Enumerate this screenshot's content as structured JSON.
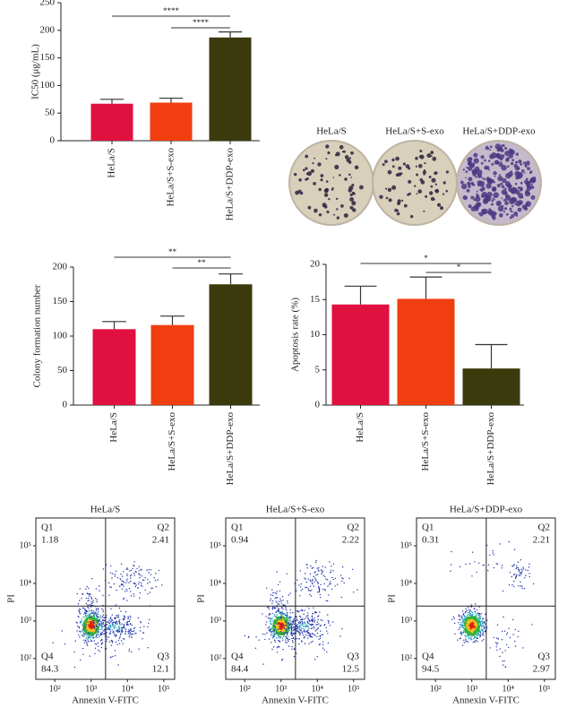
{
  "chart_data": [
    {
      "type": "bar",
      "y_label": "IC50 (μg/mL)",
      "categories": [
        "HeLa/S",
        "HeLa/S+S-exo",
        "HeLa/S+DDP-exo"
      ],
      "values": [
        67,
        69,
        187
      ],
      "errors": [
        8,
        8,
        10
      ],
      "colors": [
        "#e0103f",
        "#f03e10",
        "#3a3a0c"
      ],
      "ylim": [
        0,
        250
      ],
      "yticks": [
        0,
        50,
        100,
        150,
        200,
        250
      ],
      "brackets": [
        {
          "label": "****",
          "from": 0,
          "to": 2
        },
        {
          "label": "****",
          "from": 1,
          "to": 2
        }
      ]
    },
    {
      "type": "bar",
      "y_label": "Colony formation number",
      "categories": [
        "HeLa/S",
        "HeLa/S+S-exo",
        "HeLa/S+DDP-exo"
      ],
      "values": [
        110,
        116,
        175
      ],
      "errors": [
        11,
        13,
        15
      ],
      "colors": [
        "#e0103f",
        "#f03e10",
        "#3a3a0c"
      ],
      "ylim": [
        0,
        200
      ],
      "yticks": [
        0,
        50,
        100,
        150,
        200
      ],
      "brackets": [
        {
          "label": "**",
          "from": 0,
          "to": 2
        },
        {
          "label": "**",
          "from": 1,
          "to": 2
        }
      ]
    },
    {
      "type": "bar",
      "y_label": "Apoptosis rate (%)",
      "categories": [
        "HeLa/S",
        "HeLa/S+S-exo",
        "HeLa/S+DDP-exo"
      ],
      "values": [
        14.3,
        15.1,
        5.2
      ],
      "errors": [
        2.6,
        3.1,
        3.4
      ],
      "colors": [
        "#e0103f",
        "#f03e10",
        "#3a3a0c"
      ],
      "ylim": [
        0,
        20
      ],
      "yticks": [
        0,
        5,
        10,
        15,
        20
      ],
      "brackets": [
        {
          "label": "*",
          "from": 0,
          "to": 2
        },
        {
          "label": "*",
          "from": 1,
          "to": 2
        }
      ]
    },
    {
      "type": "flow",
      "title": "HeLa/S",
      "x_label": "Annexin V-FITC",
      "y_label": "PI",
      "log": true,
      "xlim": [
        30,
        200000
      ],
      "ylim": [
        28,
        550000
      ],
      "xticks": [
        {
          "value": 100,
          "label": "10²"
        },
        {
          "value": 1000,
          "label": "10³"
        },
        {
          "value": 10000,
          "label": "10⁴"
        },
        {
          "value": 100000,
          "label": "10⁵"
        }
      ],
      "yticks": [
        {
          "value": 100,
          "label": "10²"
        },
        {
          "value": 1000,
          "label": "10³"
        },
        {
          "value": 10000,
          "label": "10⁴"
        },
        {
          "value": 100000,
          "label": "10⁵"
        }
      ],
      "quadrant_x": 2500,
      "quadrant_y": 2500,
      "quadrants": [
        {
          "name": "Q1",
          "value": 1.18
        },
        {
          "name": "Q2",
          "value": 2.41
        },
        {
          "name": "Q4",
          "value": 84.3
        },
        {
          "name": "Q3",
          "value": 12.1
        }
      ]
    },
    {
      "type": "flow",
      "title": "HeLa/S+S-exo",
      "x_label": "Annexin V-FITC",
      "y_label": "PI",
      "log": true,
      "xlim": [
        30,
        200000
      ],
      "ylim": [
        28,
        550000
      ],
      "xticks": [
        {
          "value": 100,
          "label": "10²"
        },
        {
          "value": 1000,
          "label": "10³"
        },
        {
          "value": 10000,
          "label": "10⁴"
        },
        {
          "value": 100000,
          "label": "10⁵"
        }
      ],
      "yticks": [
        {
          "value": 100,
          "label": "10²"
        },
        {
          "value": 1000,
          "label": "10³"
        },
        {
          "value": 10000,
          "label": "10⁴"
        },
        {
          "value": 100000,
          "label": "10⁵"
        }
      ],
      "quadrant_x": 2500,
      "quadrant_y": 2500,
      "quadrants": [
        {
          "name": "Q1",
          "value": 0.94
        },
        {
          "name": "Q2",
          "value": 2.22
        },
        {
          "name": "Q4",
          "value": 84.4
        },
        {
          "name": "Q3",
          "value": 12.5
        }
      ]
    },
    {
      "type": "flow",
      "title": "HeLa/S+DDP-exo",
      "x_label": "Annexin V-FITC",
      "y_label": "PI",
      "log": true,
      "xlim": [
        30,
        200000
      ],
      "ylim": [
        28,
        550000
      ],
      "xticks": [
        {
          "value": 100,
          "label": "10²"
        },
        {
          "value": 1000,
          "label": "10³"
        },
        {
          "value": 10000,
          "label": "10⁴"
        },
        {
          "value": 100000,
          "label": "10⁵"
        }
      ],
      "yticks": [
        {
          "value": 100,
          "label": "10²"
        },
        {
          "value": 1000,
          "label": "10³"
        },
        {
          "value": 10000,
          "label": "10⁴"
        },
        {
          "value": 100000,
          "label": "10⁵"
        }
      ],
      "quadrant_x": 2500,
      "quadrant_y": 2500,
      "quadrants": [
        {
          "name": "Q1",
          "value": 0.31
        },
        {
          "name": "Q2",
          "value": 2.21
        },
        {
          "name": "Q4",
          "value": 94.5
        },
        {
          "name": "Q3",
          "value": 2.97
        }
      ]
    }
  ],
  "colony_images": {
    "labels": [
      "HeLa/S",
      "HeLa/S+S-exo",
      "HeLa/S+DDP-exo"
    ]
  }
}
